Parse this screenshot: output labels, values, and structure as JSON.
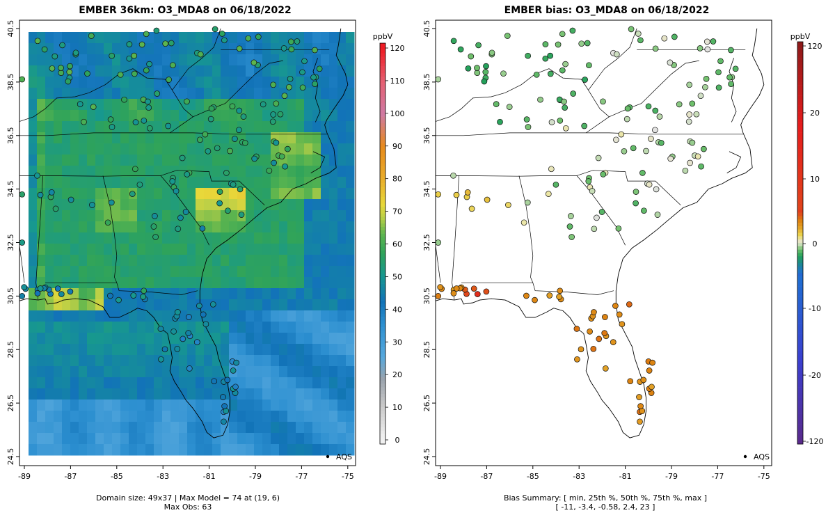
{
  "left_panel": {
    "title": "EMBER 36km: O3_MDA8 on 06/18/2022",
    "x_ticks": [
      "-89",
      "-87",
      "-85",
      "-83",
      "-81",
      "-79",
      "-77",
      "-75"
    ],
    "y_ticks": [
      "24.5",
      "26.5",
      "28.5",
      "30.5",
      "32.5",
      "34.5",
      "36.5",
      "38.5",
      "40.5"
    ],
    "legend_label": "AQS",
    "footer_line1": "Domain size: 49x37 | Max Model = 74 at (19, 6)",
    "footer_line2": "Max Obs: 63",
    "colorbar": {
      "unit": "ppbV",
      "ticks": [
        "0",
        "10",
        "20",
        "30",
        "40",
        "50",
        "60",
        "70",
        "80",
        "90",
        "100",
        "110",
        "120"
      ],
      "range": [
        0,
        120
      ]
    }
  },
  "right_panel": {
    "title": "EMBER bias: O3_MDA8 on 06/18/2022",
    "x_ticks": [
      "-89",
      "-87",
      "-85",
      "-83",
      "-81",
      "-79",
      "-77",
      "-75"
    ],
    "y_ticks": [
      "24.5",
      "26.5",
      "28.5",
      "30.5",
      "32.5",
      "34.5",
      "36.5",
      "38.5",
      "40.5"
    ],
    "legend_label": "AQS",
    "footer_line1": "Bias Summary: [ min, 25th %, 50th %, 75th %, max ]",
    "footer_line2": "[ -11,   -3.4,   -0.58,   2.4,   23 ]",
    "colorbar": {
      "unit": "ppbV",
      "ticks": [
        "120",
        "20",
        "10",
        "0",
        "-10",
        "-20",
        "-120"
      ]
    }
  },
  "colors": {
    "model_low": "#e8e8e8",
    "model_mid_blue": "#2f86c2",
    "model_green": "#1f9e6b",
    "model_yellow": "#e6d43c",
    "model_red": "#ee1c25",
    "bias_neg": "#1a9d5e",
    "bias_zero": "#dcdcdc",
    "bias_pos": "#e08b0b"
  },
  "chart_data": [
    {
      "type": "heatmap",
      "title": "EMBER 36km: O3_MDA8 on 06/18/2022",
      "xlim": [
        -89.2,
        -74.8
      ],
      "ylim": [
        24.2,
        40.8
      ],
      "units": "ppbV",
      "color_range": [
        0,
        120
      ],
      "domain_size": "49x37",
      "max_model": 74,
      "max_obs": 63
    },
    {
      "type": "scatter",
      "title": "EMBER bias: O3_MDA8 on 06/18/2022",
      "xlim": [
        -89.2,
        -74.8
      ],
      "ylim": [
        24.2,
        40.8
      ],
      "units": "ppbV",
      "bias_summary": {
        "min": -11,
        "p25": -3.4,
        "p50": -0.58,
        "p75": 2.4,
        "max": 23
      }
    }
  ]
}
